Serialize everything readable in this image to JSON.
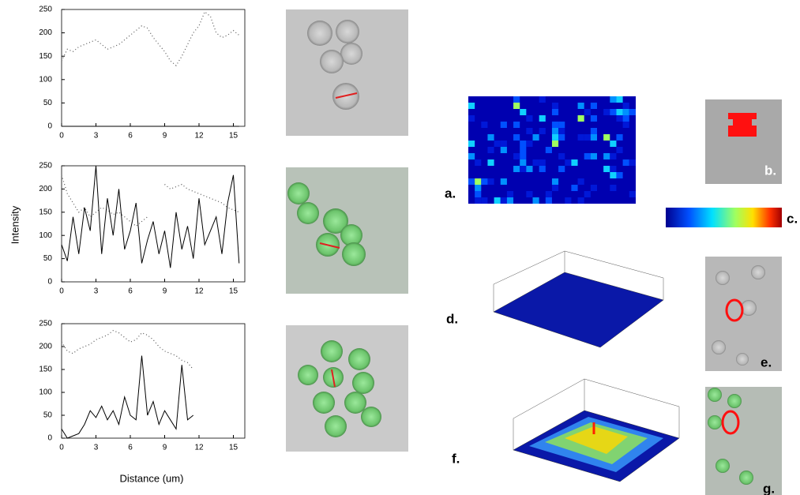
{
  "chart_data": [
    {
      "type": "line",
      "x": [
        0,
        0.5,
        1,
        1.5,
        2,
        2.5,
        3,
        3.5,
        4,
        4.5,
        5,
        5.5,
        6,
        6.5,
        7,
        7.5,
        8,
        8.5,
        9,
        9.5,
        10,
        10.5,
        11,
        11.5,
        12,
        12.5,
        13,
        13.5,
        14,
        14.5,
        15,
        15.5
      ],
      "series": [
        {
          "color": "#555555",
          "style": "dotted",
          "values": [
            140,
            165,
            160,
            170,
            175,
            180,
            185,
            175,
            165,
            170,
            175,
            185,
            195,
            205,
            215,
            210,
            190,
            175,
            160,
            140,
            130,
            150,
            175,
            200,
            215,
            245,
            235,
            200,
            190,
            195,
            205,
            195
          ]
        },
        {
          "color": "#000000",
          "style": "solid",
          "values": [
            0,
            0,
            0,
            0,
            0,
            0,
            0,
            0,
            0,
            0,
            0,
            0,
            0,
            0,
            0,
            0,
            0,
            0,
            0,
            0,
            0,
            0,
            0,
            0,
            0,
            0,
            0,
            0,
            0,
            0,
            0,
            0
          ]
        }
      ],
      "xlim": [
        0,
        16
      ],
      "xticks": [
        0,
        3,
        6,
        9,
        12,
        15
      ],
      "ylim": [
        0,
        250
      ],
      "yticks": [
        0,
        50,
        100,
        150,
        200,
        250
      ]
    },
    {
      "type": "line",
      "x": [
        0,
        0.5,
        1,
        1.5,
        2,
        2.5,
        3,
        3.5,
        4,
        4.5,
        5,
        5.5,
        6,
        6.5,
        7,
        7.5,
        8,
        8.5,
        9,
        9.5,
        10,
        10.5,
        11,
        11.5,
        12,
        12.5,
        13,
        13.5,
        14,
        14.5,
        15,
        15.5
      ],
      "series": [
        {
          "color": "#555555",
          "style": "dotted",
          "values": [
            230,
            190,
            170,
            150,
            160,
            140,
            150,
            160,
            155,
            145,
            150,
            140,
            130,
            120,
            130,
            140,
            null,
            null,
            210,
            200,
            205,
            210,
            200,
            195,
            190,
            185,
            180,
            175,
            170,
            160,
            155,
            150
          ]
        },
        {
          "color": "#000000",
          "style": "solid",
          "values": [
            80,
            45,
            140,
            60,
            160,
            110,
            250,
            60,
            180,
            100,
            200,
            70,
            110,
            170,
            40,
            90,
            130,
            60,
            110,
            30,
            150,
            70,
            120,
            50,
            180,
            80,
            110,
            140,
            60,
            170,
            230,
            40
          ]
        }
      ],
      "xlim": [
        0,
        16
      ],
      "xticks": [
        0,
        3,
        6,
        9,
        12,
        15
      ],
      "ylim": [
        0,
        250
      ],
      "yticks": [
        0,
        50,
        100,
        150,
        200,
        250
      ]
    },
    {
      "type": "line",
      "x": [
        0,
        0.5,
        1,
        1.5,
        2,
        2.5,
        3,
        3.5,
        4,
        4.5,
        5,
        5.5,
        6,
        6.5,
        7,
        7.5,
        8,
        8.5,
        9,
        9.5,
        10,
        10.5,
        11,
        11.5
      ],
      "series": [
        {
          "color": "#555555",
          "style": "dotted",
          "values": [
            210,
            190,
            185,
            195,
            200,
            205,
            215,
            220,
            225,
            235,
            230,
            220,
            210,
            215,
            230,
            225,
            215,
            200,
            190,
            185,
            180,
            170,
            165,
            150
          ]
        },
        {
          "color": "#000000",
          "style": "solid",
          "values": [
            20,
            0,
            5,
            10,
            30,
            60,
            45,
            70,
            40,
            60,
            30,
            90,
            50,
            40,
            180,
            50,
            80,
            30,
            60,
            40,
            20,
            160,
            40,
            50
          ]
        }
      ],
      "xlim": [
        0,
        16
      ],
      "xticks": [
        0,
        3,
        6,
        9,
        12,
        15
      ],
      "ylim": [
        0,
        250
      ],
      "yticks": [
        0,
        50,
        100,
        150,
        200,
        250
      ]
    }
  ],
  "axis_titles": {
    "y": "Intensity",
    "x": "Distance (um)"
  },
  "panel_labels": {
    "a": "a.",
    "b": "b.",
    "c": "c.",
    "d": "d.",
    "e": "e.",
    "f": "f.",
    "g": "g."
  }
}
